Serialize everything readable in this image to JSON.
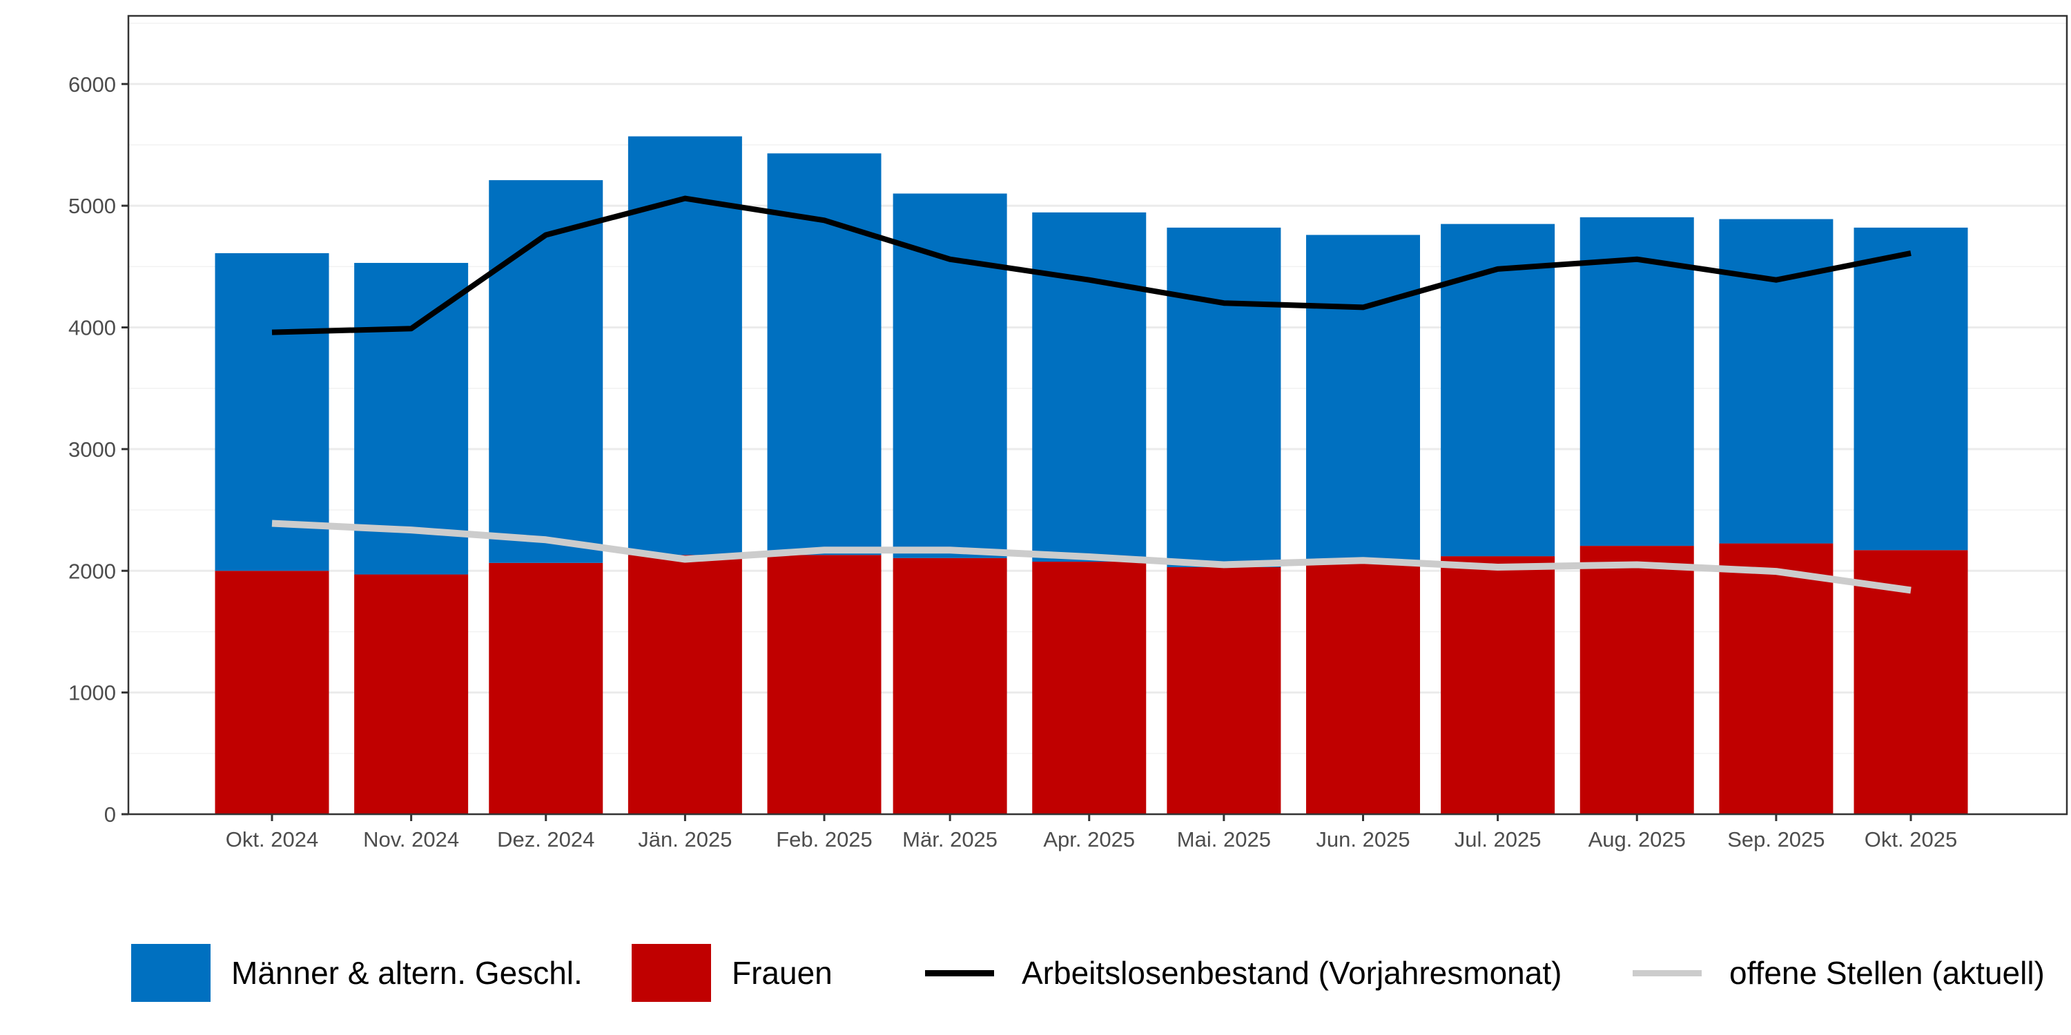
{
  "chart_data": {
    "type": "bar",
    "stacked": true,
    "title": "",
    "xlabel": "",
    "ylabel": "",
    "ylim": [
      0,
      6560
    ],
    "yticks": [
      0,
      1000,
      2000,
      3000,
      4000,
      5000,
      6000
    ],
    "grid": true,
    "legend_position": "bottom",
    "categories": [
      "Okt. 2024",
      "Nov. 2024",
      "Dez. 2024",
      "Jän. 2025",
      "Feb. 2025",
      "Mär. 2025",
      "Apr. 2025",
      "Mai. 2025",
      "Jun. 2025",
      "Jul. 2025",
      "Aug. 2025",
      "Sep. 2025",
      "Okt. 2025"
    ],
    "dates": [
      "2024-10",
      "2024-11",
      "2024-12",
      "2025-01",
      "2025-02",
      "2025-03",
      "2025-04",
      "2025-05",
      "2025-06",
      "2025-07",
      "2025-08",
      "2025-09",
      "2025-10"
    ],
    "series": [
      {
        "name": "Frauen",
        "kind": "bar",
        "color": "#c00000",
        "values": [
          2000,
          1970,
          2065,
          2130,
          2130,
          2105,
          2075,
          2030,
          2060,
          2120,
          2205,
          2225,
          2170
        ]
      },
      {
        "name": "Männer & altern. Geschl.",
        "kind": "bar",
        "color": "#0070c0",
        "values": [
          2610,
          2560,
          3145,
          3440,
          3300,
          2995,
          2870,
          2790,
          2700,
          2730,
          2700,
          2665,
          2650
        ]
      },
      {
        "name": "Arbeitslosenbestand (Vorjahresmonat)",
        "kind": "line",
        "color": "#000000",
        "values": [
          3960,
          3990,
          4760,
          5060,
          4880,
          4560,
          4390,
          4200,
          4165,
          4480,
          4560,
          4390,
          4610
        ]
      },
      {
        "name": "offene Stellen (aktuell)",
        "kind": "line",
        "color": "#cccccc",
        "values": [
          2390,
          2335,
          2255,
          2095,
          2170,
          2170,
          2115,
          2050,
          2085,
          2030,
          2050,
          1995,
          1840
        ]
      }
    ]
  },
  "legend": [
    {
      "label": "Männer & altern. Geschl.",
      "type": "fill",
      "color": "#0070c0"
    },
    {
      "label": "Frauen",
      "type": "fill",
      "color": "#c00000"
    },
    {
      "label": "Arbeitslosenbestand (Vorjahresmonat)",
      "type": "line",
      "color": "#000000"
    },
    {
      "label": "offene Stellen (aktuell)",
      "type": "line",
      "color": "#cccccc"
    }
  ]
}
